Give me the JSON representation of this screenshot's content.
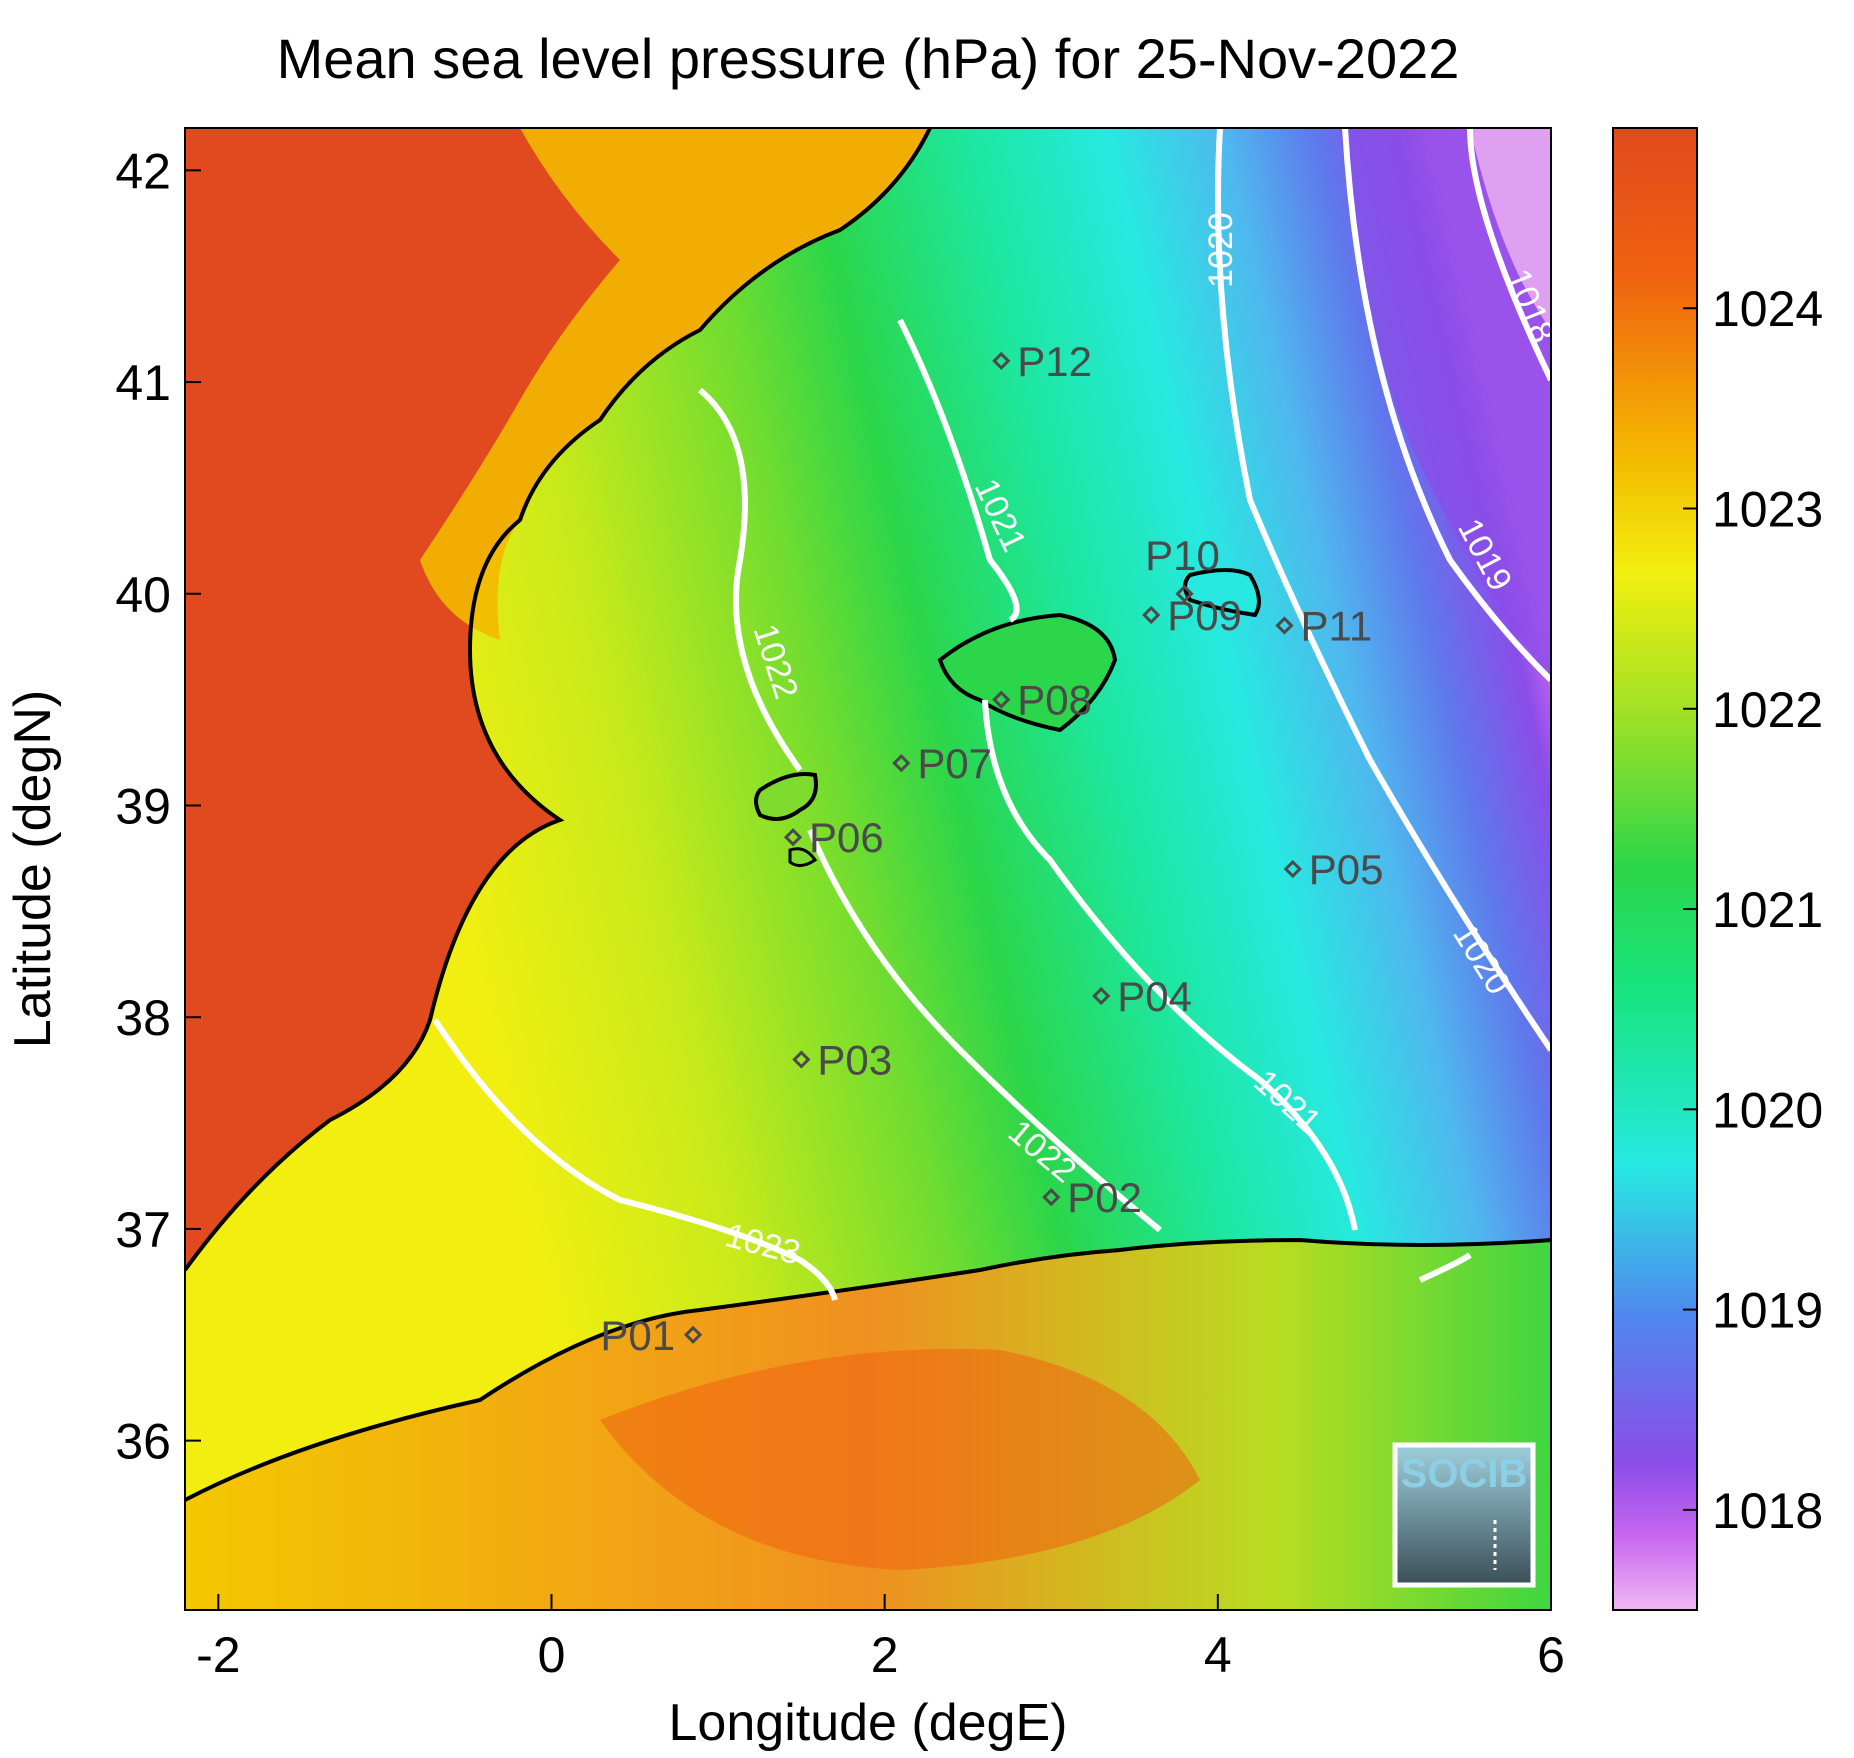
{
  "title": "Mean sea level pressure (hPa) for 25-Nov-2022",
  "xlabel": "Longitude (degE)",
  "ylabel": "Latitude (degN)",
  "x_ticks": [
    "-2",
    "0",
    "2",
    "4",
    "6"
  ],
  "y_ticks": [
    "42",
    "41",
    "40",
    "39",
    "38",
    "37",
    "36"
  ],
  "colorbar_ticks": [
    "1024",
    "1023",
    "1022",
    "1021",
    "1020",
    "1019",
    "1018"
  ],
  "colorbar_range": [
    1017.5,
    1024.9
  ],
  "lon_range": [
    -2.2,
    6.0
  ],
  "lat_range": [
    35.2,
    42.2
  ],
  "stations": [
    {
      "id": "P01",
      "lon": 0.85,
      "lat": 36.5
    },
    {
      "id": "P02",
      "lon": 3.0,
      "lat": 37.15
    },
    {
      "id": "P03",
      "lon": 1.5,
      "lat": 37.8
    },
    {
      "id": "P04",
      "lon": 3.3,
      "lat": 38.1
    },
    {
      "id": "P05",
      "lon": 4.45,
      "lat": 38.7
    },
    {
      "id": "P06",
      "lon": 1.45,
      "lat": 38.85
    },
    {
      "id": "P07",
      "lon": 2.1,
      "lat": 39.2
    },
    {
      "id": "P08",
      "lon": 2.7,
      "lat": 39.5
    },
    {
      "id": "P09",
      "lon": 3.6,
      "lat": 39.9
    },
    {
      "id": "P10",
      "lon": 3.8,
      "lat": 40.0
    },
    {
      "id": "P11",
      "lon": 4.4,
      "lat": 39.85
    },
    {
      "id": "P12",
      "lon": 2.7,
      "lat": 41.1
    }
  ],
  "contour_labels": [
    "1018",
    "1019",
    "1020",
    "1020",
    "1021",
    "1021",
    "1022",
    "1022",
    "1023"
  ],
  "logo": {
    "text": "SOCIB"
  },
  "colors": {
    "land_high": "#e04a1e",
    "sea_high": "#f2ef10",
    "sea_mid": "#2bd64a",
    "sea_low": "#27e9e1",
    "low_blue": "#4f88ee",
    "low_purple": "#8b4de8",
    "lowest": "#f0b8f2",
    "contour": "#ffffff",
    "coast": "#000000"
  }
}
